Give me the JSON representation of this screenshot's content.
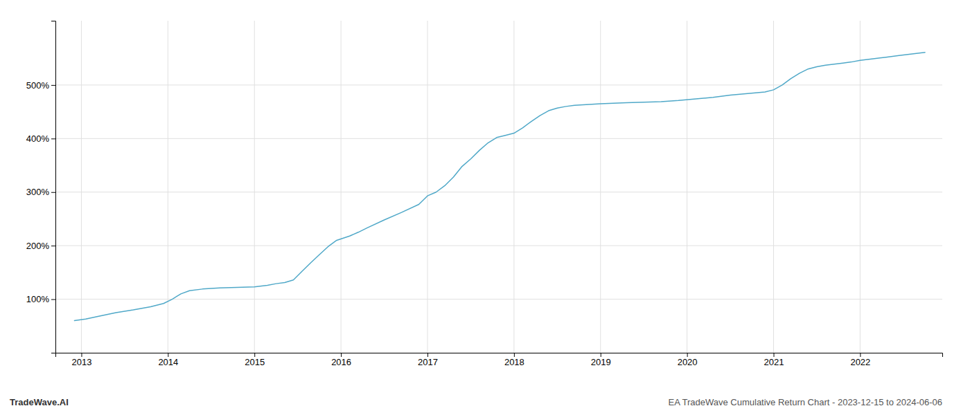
{
  "chart_data": {
    "type": "line",
    "title": "EA TradeWave Cumulative Return Chart - 2023-12-15 to 2024-06-06",
    "annotations": [
      "TradeWave.AI"
    ],
    "color": "#4fa8c8",
    "x": [
      2012.92,
      2013.05,
      2013.2,
      2013.4,
      2013.6,
      2013.8,
      2013.95,
      2014.05,
      2014.15,
      2014.25,
      2014.4,
      2014.6,
      2014.8,
      2015.0,
      2015.15,
      2015.25,
      2015.35,
      2015.45,
      2015.55,
      2015.65,
      2015.75,
      2015.85,
      2015.95,
      2016.1,
      2016.2,
      2016.3,
      2016.5,
      2016.7,
      2016.9,
      2017.0,
      2017.1,
      2017.2,
      2017.3,
      2017.4,
      2017.5,
      2017.6,
      2017.7,
      2017.8,
      2017.9,
      2018.0,
      2018.1,
      2018.2,
      2018.3,
      2018.4,
      2018.5,
      2018.6,
      2018.7,
      2018.8,
      2018.9,
      2019.0,
      2019.15,
      2019.3,
      2019.5,
      2019.7,
      2019.9,
      2020.1,
      2020.3,
      2020.5,
      2020.7,
      2020.9,
      2021.0,
      2021.1,
      2021.2,
      2021.3,
      2021.4,
      2021.5,
      2021.6,
      2021.7,
      2021.8,
      2021.9,
      2022.0,
      2022.15,
      2022.3,
      2022.45,
      2022.6,
      2022.75
    ],
    "values": [
      60,
      63,
      68,
      75,
      80,
      86,
      92,
      100,
      110,
      116,
      119,
      121,
      122,
      123,
      126,
      129,
      131,
      136,
      152,
      168,
      183,
      198,
      210,
      218,
      225,
      233,
      248,
      262,
      277,
      293,
      300,
      312,
      328,
      348,
      362,
      378,
      392,
      402,
      406,
      410,
      420,
      432,
      443,
      452,
      457,
      460,
      462,
      463,
      464,
      465,
      466,
      467,
      468,
      469,
      471,
      474,
      477,
      481,
      484,
      487,
      491,
      500,
      512,
      522,
      530,
      534,
      537,
      539,
      541,
      543,
      546,
      549,
      552,
      555,
      558,
      561
    ],
    "xlim": [
      2012.7,
      2022.95
    ],
    "xticks": [
      2013,
      2014,
      2015,
      2016,
      2017,
      2018,
      2019,
      2020,
      2021,
      2022
    ],
    "ylim": [
      0,
      620
    ],
    "yticks": [
      {
        "value": 100,
        "label": "100%"
      },
      {
        "value": 200,
        "label": "200%"
      },
      {
        "value": 300,
        "label": "300%"
      },
      {
        "value": 400,
        "label": "400%"
      },
      {
        "value": 500,
        "label": "500%"
      }
    ],
    "grid": true
  }
}
